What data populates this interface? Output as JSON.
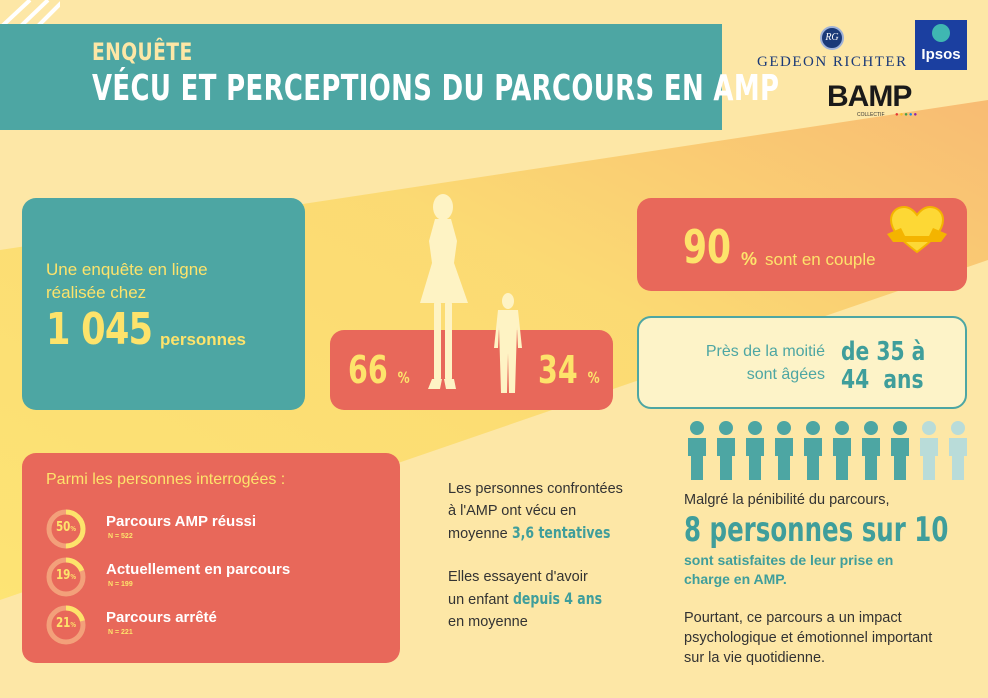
{
  "header": {
    "kicker": "ENQUÊTE",
    "title": "VÉCU ET PERCEPTIONS DU PARCOURS EN AMP"
  },
  "logos": {
    "gedeon": "GEDEON RICHTER",
    "gedeon_emblem": "RG",
    "ipsos": "Ipsos",
    "bamp": "BAMP",
    "bamp_sub": "COLLECTIF"
  },
  "survey": {
    "line1": "Une enquête en ligne",
    "line2": "réalisée chez",
    "count": "1 045",
    "unit": "personnes"
  },
  "gender": {
    "women_value": "66",
    "men_value": "34",
    "percent_sign": "%"
  },
  "couple": {
    "value": "90",
    "percent_sign": "%",
    "text": "sont en couple"
  },
  "age": {
    "line1": "Près de la moitié",
    "line2": "sont âgées",
    "range_line1": "de 35 à",
    "range_line2": "44  ans"
  },
  "respondents": {
    "heading": "Parmi les personnes interrogées :",
    "items": [
      {
        "value": "50",
        "pct": "%",
        "label": "Parcours AMP réussi",
        "n": "N = 522",
        "fraction": 0.5
      },
      {
        "value": "19",
        "pct": "%",
        "label": "Actuellement en parcours",
        "n": "N = 199",
        "fraction": 0.19
      },
      {
        "value": "21",
        "pct": "%",
        "label": "Parcours arrêté",
        "n": "N = 221",
        "fraction": 0.21
      }
    ]
  },
  "attempts": {
    "line1": "Les personnes confrontées",
    "line2": "à l'AMP ont vécu en",
    "line3": "moyenne",
    "highlight": "3,6 tentatives"
  },
  "duration": {
    "line1": "Elles essayent d'avoir",
    "line2": "un enfant",
    "highlight": "depuis 4 ans",
    "line3": "en moyenne"
  },
  "satisfaction": {
    "intro": "Malgré la pénibilité du parcours,",
    "headline": "8 personnes sur 10",
    "sub1": "sont satisfaites de leur prise en",
    "sub2": "charge en AMP.",
    "satisfied_count": 8,
    "total_count": 10
  },
  "impact": {
    "line1": "Pourtant, ce parcours a un impact",
    "line2": "psychologique et émotionnel important",
    "line3": "sur la vie quotidienne."
  },
  "colors": {
    "background": "#fde7a6",
    "teal": "#4da6a3",
    "coral": "#e8685a",
    "yellow": "#fde36b",
    "light_teal": "#b9dcd9"
  }
}
